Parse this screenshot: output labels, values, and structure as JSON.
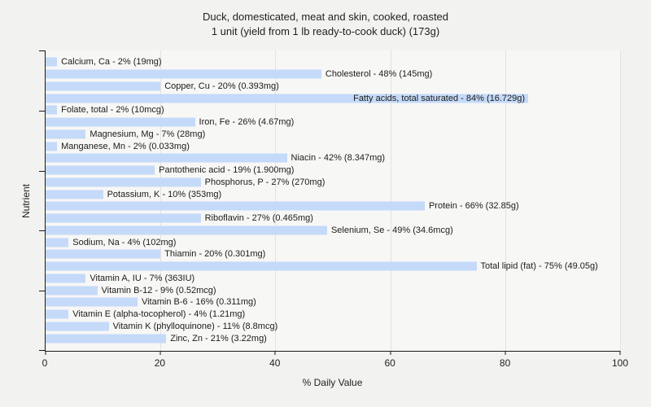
{
  "title": {
    "line1": "Duck, domesticated, meat and skin, cooked, roasted",
    "line2": "1 unit (yield from 1 lb ready-to-cook duck) (173g)"
  },
  "chart_data": {
    "type": "bar",
    "orientation": "horizontal",
    "title": "Duck, domesticated, meat and skin, cooked, roasted — 1 unit (yield from 1 lb ready-to-cook duck) (173g)",
    "xlabel": "% Daily Value",
    "ylabel": "Nutrient",
    "xlim": [
      0,
      100
    ],
    "x_ticks": [
      0,
      20,
      40,
      60,
      80,
      100
    ],
    "y_tick_positions_pct": [
      0,
      20,
      40,
      60,
      80,
      100
    ],
    "grid": true,
    "bar_color": "#c4daf8",
    "plot_bg": "#f7f7f6",
    "page_bg": "#f2f2f1",
    "bars": [
      {
        "nutrient": "Calcium, Ca",
        "percent": 2,
        "amount": "19mg",
        "label": "Calcium, Ca - 2% (19mg)"
      },
      {
        "nutrient": "Cholesterol",
        "percent": 48,
        "amount": "145mg",
        "label": "Cholesterol - 48% (145mg)"
      },
      {
        "nutrient": "Copper, Cu",
        "percent": 20,
        "amount": "0.393mg",
        "label": "Copper, Cu - 20% (0.393mg)"
      },
      {
        "nutrient": "Fatty acids, total saturated",
        "percent": 84,
        "amount": "16.729g",
        "label": "Fatty acids, total saturated - 84% (16.729g)",
        "label_inside": true
      },
      {
        "nutrient": "Folate, total",
        "percent": 2,
        "amount": "10mcg",
        "label": "Folate, total - 2% (10mcg)"
      },
      {
        "nutrient": "Iron, Fe",
        "percent": 26,
        "amount": "4.67mg",
        "label": "Iron, Fe - 26% (4.67mg)"
      },
      {
        "nutrient": "Magnesium, Mg",
        "percent": 7,
        "amount": "28mg",
        "label": "Magnesium, Mg - 7% (28mg)"
      },
      {
        "nutrient": "Manganese, Mn",
        "percent": 2,
        "amount": "0.033mg",
        "label": "Manganese, Mn - 2% (0.033mg)"
      },
      {
        "nutrient": "Niacin",
        "percent": 42,
        "amount": "8.347mg",
        "label": "Niacin - 42% (8.347mg)"
      },
      {
        "nutrient": "Pantothenic acid",
        "percent": 19,
        "amount": "1.900mg",
        "label": "Pantothenic acid - 19% (1.900mg)"
      },
      {
        "nutrient": "Phosphorus, P",
        "percent": 27,
        "amount": "270mg",
        "label": "Phosphorus, P - 27% (270mg)"
      },
      {
        "nutrient": "Potassium, K",
        "percent": 10,
        "amount": "353mg",
        "label": "Potassium, K - 10% (353mg)"
      },
      {
        "nutrient": "Protein",
        "percent": 66,
        "amount": "32.85g",
        "label": "Protein - 66% (32.85g)"
      },
      {
        "nutrient": "Riboflavin",
        "percent": 27,
        "amount": "0.465mg",
        "label": "Riboflavin - 27% (0.465mg)"
      },
      {
        "nutrient": "Selenium, Se",
        "percent": 49,
        "amount": "34.6mcg",
        "label": "Selenium, Se - 49% (34.6mcg)"
      },
      {
        "nutrient": "Sodium, Na",
        "percent": 4,
        "amount": "102mg",
        "label": "Sodium, Na - 4% (102mg)"
      },
      {
        "nutrient": "Thiamin",
        "percent": 20,
        "amount": "0.301mg",
        "label": "Thiamin - 20% (0.301mg)"
      },
      {
        "nutrient": "Total lipid (fat)",
        "percent": 75,
        "amount": "49.05g",
        "label": "Total lipid (fat) - 75% (49.05g)"
      },
      {
        "nutrient": "Vitamin A, IU",
        "percent": 7,
        "amount": "363IU",
        "label": "Vitamin A, IU - 7% (363IU)"
      },
      {
        "nutrient": "Vitamin B-12",
        "percent": 9,
        "amount": "0.52mcg",
        "label": "Vitamin B-12 - 9% (0.52mcg)"
      },
      {
        "nutrient": "Vitamin B-6",
        "percent": 16,
        "amount": "0.311mg",
        "label": "Vitamin B-6 - 16% (0.311mg)"
      },
      {
        "nutrient": "Vitamin E (alpha-tocopherol)",
        "percent": 4,
        "amount": "1.21mg",
        "label": "Vitamin E (alpha-tocopherol) - 4% (1.21mg)"
      },
      {
        "nutrient": "Vitamin K (phylloquinone)",
        "percent": 11,
        "amount": "8.8mcg",
        "label": "Vitamin K (phylloquinone) - 11% (8.8mcg)"
      },
      {
        "nutrient": "Zinc, Zn",
        "percent": 21,
        "amount": "3.22mg",
        "label": "Zinc, Zn - 21% (3.22mg)"
      }
    ]
  }
}
